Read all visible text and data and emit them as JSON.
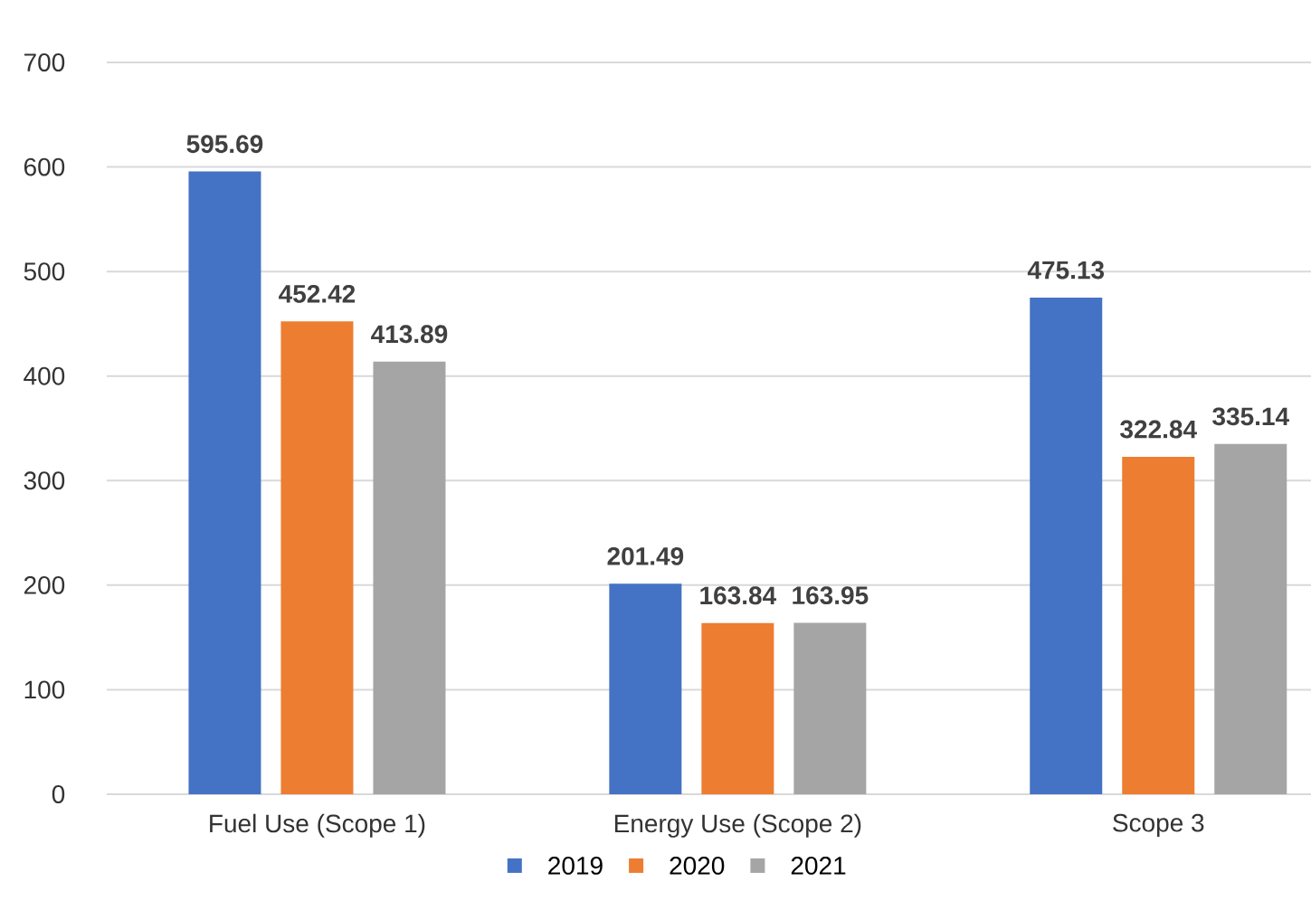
{
  "chart_data": {
    "type": "bar",
    "categories": [
      "Fuel Use (Scope 1)",
      "Energy Use (Scope 2)",
      "Scope 3"
    ],
    "series": [
      {
        "name": "2019",
        "color": "#4472c4",
        "values": [
          595.69,
          201.49,
          475.13
        ]
      },
      {
        "name": "2020",
        "color": "#ed7d31",
        "values": [
          452.42,
          163.84,
          322.84
        ]
      },
      {
        "name": "2021",
        "color": "#a5a5a5",
        "values": [
          413.89,
          163.95,
          335.14
        ]
      }
    ],
    "ylim": [
      0,
      700
    ],
    "yticks": [
      0,
      100,
      200,
      300,
      400,
      500,
      600,
      700
    ],
    "grid": "y",
    "legend": "bottom",
    "data_labels": true
  }
}
